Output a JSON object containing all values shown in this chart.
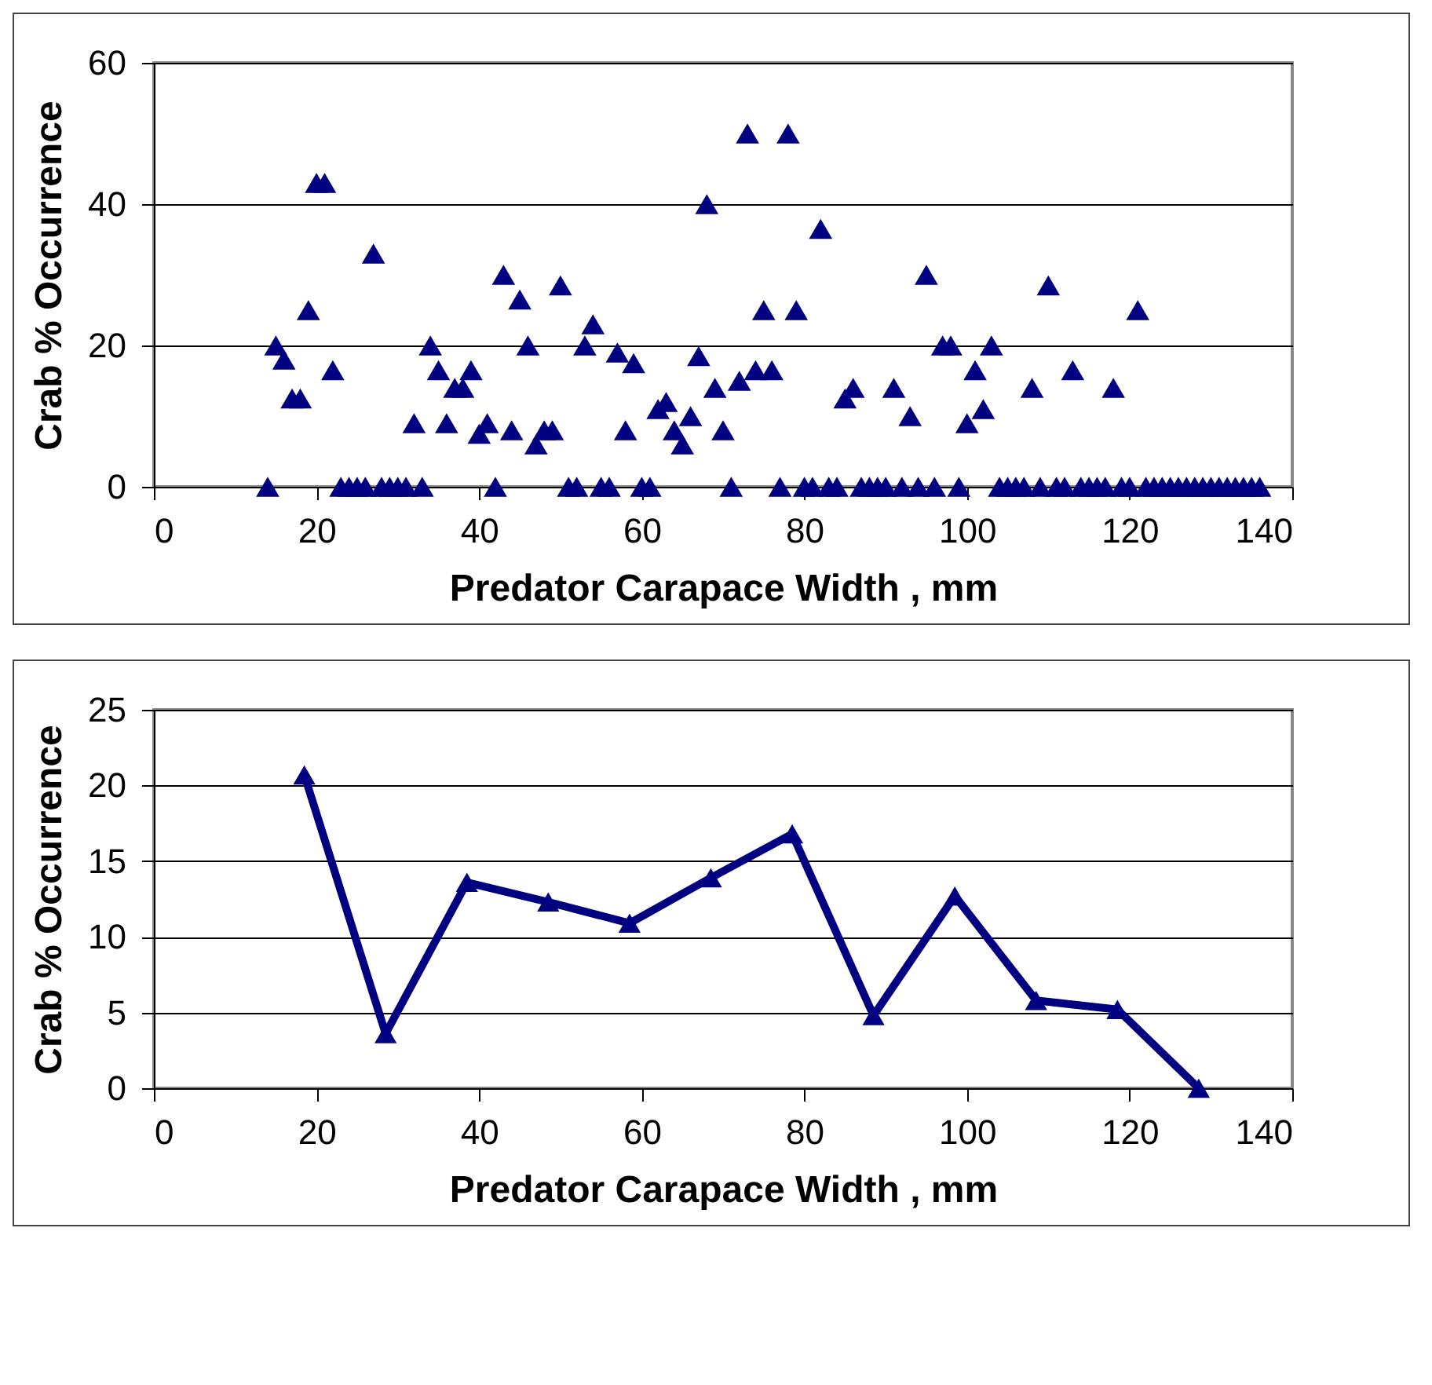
{
  "chart_data": [
    {
      "type": "scatter",
      "xlabel": "Predator Carapace Width , mm",
      "ylabel": "Crab % Occurrence",
      "xlim": [
        0,
        140
      ],
      "xticks": [
        0,
        20,
        40,
        60,
        80,
        100,
        120,
        140
      ],
      "ylim": [
        0,
        60
      ],
      "yticks": [
        0,
        20,
        40,
        60
      ],
      "grid": "y",
      "marker": "triangle",
      "series": [
        {
          "color": "#000080",
          "x": [
            14,
            15,
            16,
            17,
            18,
            19,
            20,
            21,
            22,
            23,
            24,
            25,
            26,
            27,
            28,
            29,
            30,
            31,
            32,
            33,
            34,
            35,
            36,
            37,
            38,
            39,
            40,
            41,
            42,
            43,
            44,
            45,
            46,
            47,
            48,
            49,
            50,
            51,
            52,
            53,
            54,
            55,
            56,
            57,
            58,
            59,
            60,
            61,
            62,
            63,
            64,
            65,
            66,
            67,
            68,
            69,
            70,
            71,
            72,
            73,
            74,
            75,
            76,
            77,
            78,
            79,
            80,
            81,
            82,
            83,
            84,
            85,
            86,
            87,
            88,
            89,
            90,
            91,
            92,
            93,
            94,
            95,
            96,
            97,
            98,
            99,
            100,
            101,
            102,
            103,
            104,
            105,
            106,
            107,
            108,
            109,
            110,
            111,
            112,
            113,
            114,
            115,
            116,
            117,
            118,
            119,
            120,
            121,
            122,
            123,
            124,
            125,
            126,
            127,
            128,
            129,
            130,
            131,
            132,
            133,
            134,
            135,
            136
          ],
          "values": [
            0,
            20,
            18,
            12.5,
            12.5,
            25,
            43,
            43,
            16.5,
            0,
            0,
            0,
            0,
            33,
            0,
            0,
            0,
            0,
            9,
            0,
            20,
            16.5,
            9,
            14,
            14,
            16.5,
            7.5,
            9,
            0,
            30,
            8,
            26.5,
            20,
            6,
            8,
            8,
            28.5,
            0,
            0,
            20,
            23,
            0,
            0,
            19,
            8,
            17.5,
            0,
            0,
            11,
            12,
            8,
            6,
            10,
            18.5,
            40,
            14,
            8,
            0,
            15,
            50,
            16.5,
            25,
            16.5,
            0,
            50,
            25,
            0,
            0,
            36.5,
            0,
            0,
            12.5,
            14,
            0,
            0,
            0,
            0,
            14,
            0,
            10,
            0,
            30,
            0,
            20,
            20,
            0,
            9,
            16.5,
            11,
            20,
            0,
            0,
            0,
            0,
            14,
            0,
            28.5,
            0,
            0,
            16.5,
            0,
            0,
            0,
            0,
            14,
            0,
            0,
            25,
            0,
            0,
            0,
            0,
            0,
            0,
            0,
            0,
            0,
            0,
            0,
            0,
            0,
            0,
            0
          ]
        }
      ]
    },
    {
      "type": "line",
      "xlabel": "Predator Carapace Width , mm",
      "ylabel": "Crab % Occurrence",
      "xlim": [
        0,
        140
      ],
      "xticks": [
        0,
        20,
        40,
        60,
        80,
        100,
        120,
        140
      ],
      "ylim": [
        0,
        25
      ],
      "yticks": [
        0,
        5,
        10,
        15,
        20,
        25
      ],
      "grid": "y",
      "marker": "triangle",
      "line_style": "solid",
      "series": [
        {
          "color": "#000080",
          "x": [
            18.5,
            28.5,
            38.5,
            48.5,
            58.5,
            68.5,
            78.5,
            88.5,
            98.5,
            108.5,
            118.5,
            128.5
          ],
          "values": [
            20.7,
            3.6,
            13.6,
            12.3,
            10.9,
            13.9,
            16.8,
            4.8,
            12.7,
            5.8,
            5.2,
            0
          ]
        }
      ]
    }
  ]
}
